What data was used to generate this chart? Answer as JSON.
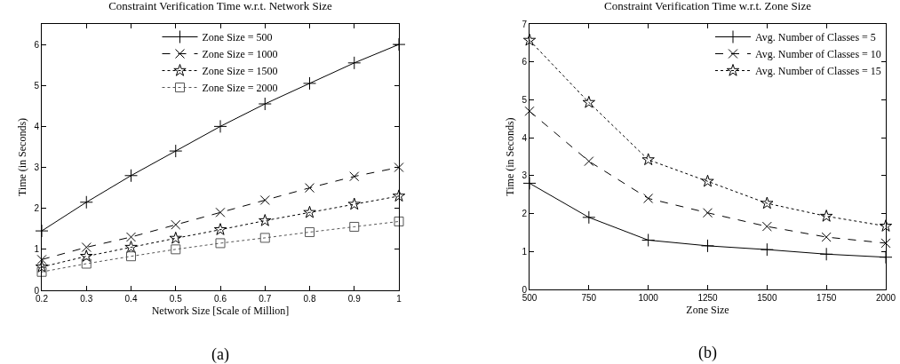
{
  "chart_data": [
    {
      "type": "line",
      "title": "Constraint Verification Time w.r.t. Network Size",
      "xlabel": "Network Size [Scale of Million]",
      "ylabel": "Time (in Seconds)",
      "x": [
        0.2,
        0.3,
        0.4,
        0.5,
        0.6,
        0.7,
        0.8,
        0.9,
        1
      ],
      "series": [
        {
          "name": "Zone Size = 500",
          "color": "#000000",
          "marker": "cross",
          "line_style": "solid",
          "values": [
            1.45,
            2.15,
            2.8,
            3.4,
            4.0,
            4.55,
            5.05,
            5.55,
            6.0
          ]
        },
        {
          "name": "Zone Size = 1000",
          "color": "#000000",
          "marker": "x",
          "line_style": "dashed",
          "values": [
            0.75,
            1.05,
            1.3,
            1.6,
            1.9,
            2.2,
            2.5,
            2.78,
            3.0
          ]
        },
        {
          "name": "Zone Size = 1500",
          "color": "#000000",
          "marker": "star",
          "line_style": "dotted",
          "values": [
            0.57,
            0.83,
            1.05,
            1.27,
            1.48,
            1.7,
            1.9,
            2.1,
            2.3
          ]
        },
        {
          "name": "Zone Size = 2000",
          "color": "#555555",
          "marker": "square",
          "line_style": "dotted",
          "values": [
            0.45,
            0.65,
            0.83,
            1.0,
            1.15,
            1.28,
            1.42,
            1.55,
            1.68
          ]
        }
      ],
      "xlim": [
        0.2,
        1
      ],
      "xticks": [
        0.2,
        0.3,
        0.4,
        0.5,
        0.6,
        0.7,
        0.8,
        0.9,
        1
      ],
      "ylim": [
        0,
        6.5
      ],
      "yticks": [
        0,
        1,
        2,
        3,
        4,
        5,
        6
      ],
      "grid": false,
      "legend": "top",
      "annotations": [
        "(a)"
      ]
    },
    {
      "type": "line",
      "title": "Constraint Verification Time w.r.t. Zone Size",
      "xlabel": "Zone Size",
      "ylabel": "Time (in Seconds)",
      "x": [
        500,
        750,
        1000,
        1250,
        1500,
        1750,
        2000
      ],
      "series": [
        {
          "name": "Avg. Number of Classes = 5",
          "color": "#000000",
          "marker": "cross",
          "line_style": "solid",
          "values": [
            2.8,
            1.9,
            1.3,
            1.15,
            1.05,
            0.93,
            0.85
          ]
        },
        {
          "name": "Avg. Number of Classes = 10",
          "color": "#000000",
          "marker": "x",
          "line_style": "dashed",
          "values": [
            4.7,
            3.38,
            2.4,
            2.02,
            1.66,
            1.38,
            1.22
          ]
        },
        {
          "name": "Avg. Number of Classes = 15",
          "color": "#000000",
          "marker": "star",
          "line_style": "dotted",
          "values": [
            6.57,
            4.93,
            3.42,
            2.85,
            2.27,
            1.93,
            1.67
          ]
        }
      ],
      "xlim": [
        500,
        2000
      ],
      "xticks": [
        500,
        750,
        1000,
        1250,
        1500,
        1750,
        2000
      ],
      "ylim": [
        0,
        7
      ],
      "yticks": [
        0,
        1,
        2,
        3,
        4,
        5,
        6,
        7
      ],
      "grid": false,
      "legend": "top right",
      "annotations": [
        "(b)"
      ]
    }
  ]
}
